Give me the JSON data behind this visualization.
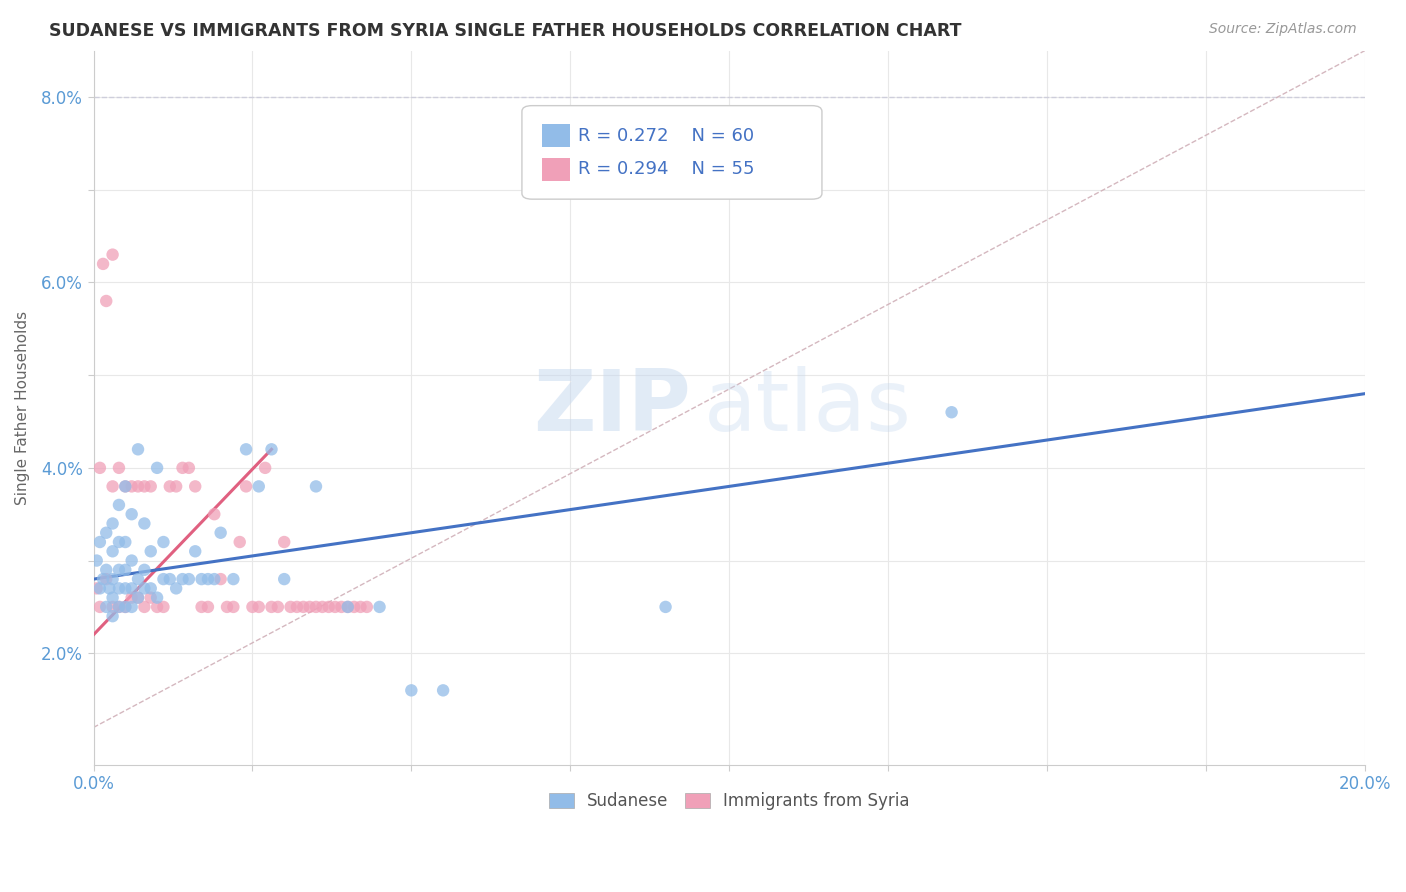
{
  "title": "SUDANESE VS IMMIGRANTS FROM SYRIA SINGLE FATHER HOUSEHOLDS CORRELATION CHART",
  "source": "Source: ZipAtlas.com",
  "ylabel": "Single Father Households",
  "xlim": [
    0.0,
    0.2
  ],
  "ylim": [
    0.008,
    0.085
  ],
  "xtick_positions": [
    0.0,
    0.025,
    0.05,
    0.075,
    0.1,
    0.125,
    0.15,
    0.175,
    0.2
  ],
  "xticklabels": [
    "0.0%",
    "",
    "",
    "",
    "",
    "",
    "",
    "",
    "20.0%"
  ],
  "ytick_positions": [
    0.02,
    0.03,
    0.04,
    0.05,
    0.06,
    0.07,
    0.08
  ],
  "yticklabels": [
    "2.0%",
    "",
    "4.0%",
    "",
    "6.0%",
    "",
    "8.0%"
  ],
  "sudanese_color": "#92bce8",
  "syria_color": "#f0a0b8",
  "trend_blue_color": "#4472c4",
  "trend_pink_color": "#e06080",
  "ref_line_color": "#d0b0b8",
  "legend_R_blue": "R = 0.272",
  "legend_N_blue": "N = 60",
  "legend_R_pink": "R = 0.294",
  "legend_N_pink": "N = 55",
  "watermark_zip": "ZIP",
  "watermark_atlas": "atlas",
  "background_color": "#ffffff",
  "grid_color": "#e8e8e8",
  "title_color": "#333333",
  "source_color": "#999999",
  "tick_color": "#5b9bd5",
  "ylabel_color": "#666666",
  "legend_text_color": "#4472c4",
  "bottom_legend_color": "#555555",
  "sudanese_x": [
    0.0005,
    0.001,
    0.001,
    0.0015,
    0.002,
    0.002,
    0.002,
    0.0025,
    0.003,
    0.003,
    0.003,
    0.003,
    0.003,
    0.004,
    0.004,
    0.004,
    0.004,
    0.004,
    0.005,
    0.005,
    0.005,
    0.005,
    0.005,
    0.006,
    0.006,
    0.006,
    0.006,
    0.007,
    0.007,
    0.007,
    0.008,
    0.008,
    0.008,
    0.009,
    0.009,
    0.01,
    0.01,
    0.011,
    0.011,
    0.012,
    0.013,
    0.014,
    0.015,
    0.016,
    0.017,
    0.018,
    0.019,
    0.02,
    0.022,
    0.024,
    0.026,
    0.028,
    0.03,
    0.035,
    0.04,
    0.045,
    0.05,
    0.055,
    0.09,
    0.135
  ],
  "sudanese_y": [
    0.03,
    0.027,
    0.032,
    0.028,
    0.025,
    0.029,
    0.033,
    0.027,
    0.024,
    0.026,
    0.028,
    0.031,
    0.034,
    0.025,
    0.027,
    0.029,
    0.032,
    0.036,
    0.025,
    0.027,
    0.029,
    0.032,
    0.038,
    0.025,
    0.027,
    0.03,
    0.035,
    0.026,
    0.028,
    0.042,
    0.027,
    0.029,
    0.034,
    0.027,
    0.031,
    0.026,
    0.04,
    0.028,
    0.032,
    0.028,
    0.027,
    0.028,
    0.028,
    0.031,
    0.028,
    0.028,
    0.028,
    0.033,
    0.028,
    0.042,
    0.038,
    0.042,
    0.028,
    0.038,
    0.025,
    0.025,
    0.016,
    0.016,
    0.025,
    0.046
  ],
  "syria_x": [
    0.0005,
    0.001,
    0.001,
    0.0015,
    0.002,
    0.002,
    0.003,
    0.003,
    0.003,
    0.004,
    0.004,
    0.005,
    0.005,
    0.006,
    0.006,
    0.007,
    0.007,
    0.008,
    0.008,
    0.009,
    0.009,
    0.01,
    0.011,
    0.012,
    0.013,
    0.014,
    0.015,
    0.016,
    0.017,
    0.018,
    0.019,
    0.02,
    0.021,
    0.022,
    0.023,
    0.024,
    0.025,
    0.026,
    0.027,
    0.028,
    0.029,
    0.03,
    0.031,
    0.032,
    0.033,
    0.034,
    0.035,
    0.036,
    0.037,
    0.038,
    0.039,
    0.04,
    0.041,
    0.042,
    0.043
  ],
  "syria_y": [
    0.027,
    0.04,
    0.025,
    0.062,
    0.028,
    0.058,
    0.025,
    0.038,
    0.063,
    0.025,
    0.04,
    0.025,
    0.038,
    0.026,
    0.038,
    0.026,
    0.038,
    0.025,
    0.038,
    0.026,
    0.038,
    0.025,
    0.025,
    0.038,
    0.038,
    0.04,
    0.04,
    0.038,
    0.025,
    0.025,
    0.035,
    0.028,
    0.025,
    0.025,
    0.032,
    0.038,
    0.025,
    0.025,
    0.04,
    0.025,
    0.025,
    0.032,
    0.025,
    0.025,
    0.025,
    0.025,
    0.025,
    0.025,
    0.025,
    0.025,
    0.025,
    0.025,
    0.025,
    0.025,
    0.025
  ],
  "blue_trend_x": [
    0.0,
    0.2
  ],
  "blue_trend_y": [
    0.028,
    0.048
  ],
  "pink_trend_x": [
    0.0,
    0.028
  ],
  "pink_trend_y": [
    0.022,
    0.042
  ],
  "ref_line_x": [
    0.0,
    0.2
  ],
  "ref_line_y": [
    0.012,
    0.085
  ]
}
